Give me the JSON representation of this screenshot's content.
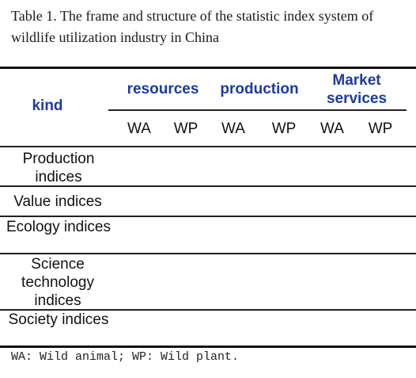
{
  "caption": "Table 1. The frame and structure of the statistic index system of wildlife utilization industry in China",
  "header": {
    "kind": "kind",
    "groups": [
      "resources",
      "production",
      "Market services"
    ],
    "sub_columns": [
      "WA",
      "WP",
      "WA",
      "WP",
      "WA",
      "WP"
    ]
  },
  "rows": [
    "Production indices",
    "Value indices",
    "Ecology indices",
    "Science technology indices",
    "Society indices"
  ],
  "footnote": "WA: Wild animal; WP: Wild plant."
}
